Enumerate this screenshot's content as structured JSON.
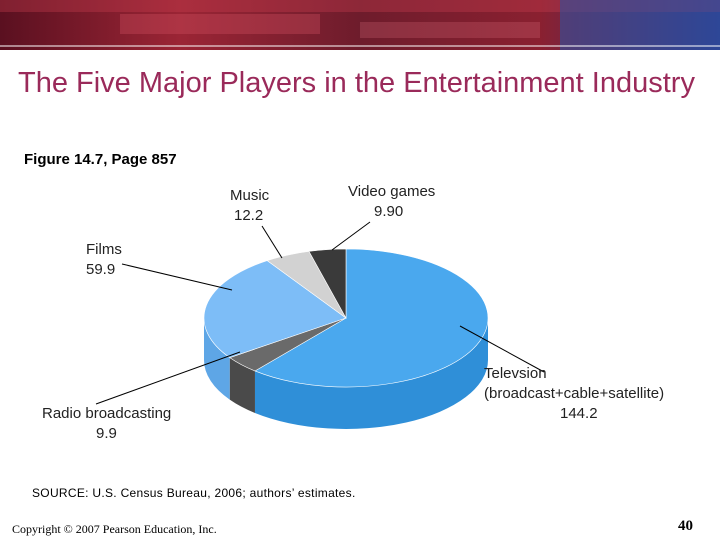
{
  "slide": {
    "title": "The Five Major Players in the Entertainment Industry",
    "subtitle": "Figure 14.7, Page 857",
    "source": "SOURCE: U.S. Census Bureau, 2006; authors’ estimates.",
    "copyright": "Copyright © 2007 Pearson Education, Inc.",
    "page_number": "40"
  },
  "chart_data": {
    "type": "pie",
    "title": "",
    "slices": [
      {
        "label": "Televsion (broadcast+cable+satellite)",
        "label_lines": [
          "Televsion",
          "(broadcast+cable+satellite)"
        ],
        "value_text": "144.2",
        "value": 144.2,
        "color": "#4aa8ee",
        "side": "#2f8fd8"
      },
      {
        "label": "Radio broadcasting",
        "label_lines": [
          "Radio broadcasting"
        ],
        "value_text": "9.9",
        "value": 9.9,
        "color": "#6a6a6a",
        "side": "#4a4a4a"
      },
      {
        "label": "Films",
        "label_lines": [
          "Films"
        ],
        "value_text": "59.9",
        "value": 59.9,
        "color": "#7dbdf7",
        "side": "#5ea6e6"
      },
      {
        "label": "Music",
        "label_lines": [
          "Music"
        ],
        "value_text": "12.2",
        "value": 12.2,
        "color": "#d2d2d2",
        "side": "#b5b5b5"
      },
      {
        "label": "Video games",
        "label_lines": [
          "Video games"
        ],
        "value_text": "9.90",
        "value": 9.9,
        "color": "#3a3a3a",
        "side": "#262626"
      }
    ]
  }
}
